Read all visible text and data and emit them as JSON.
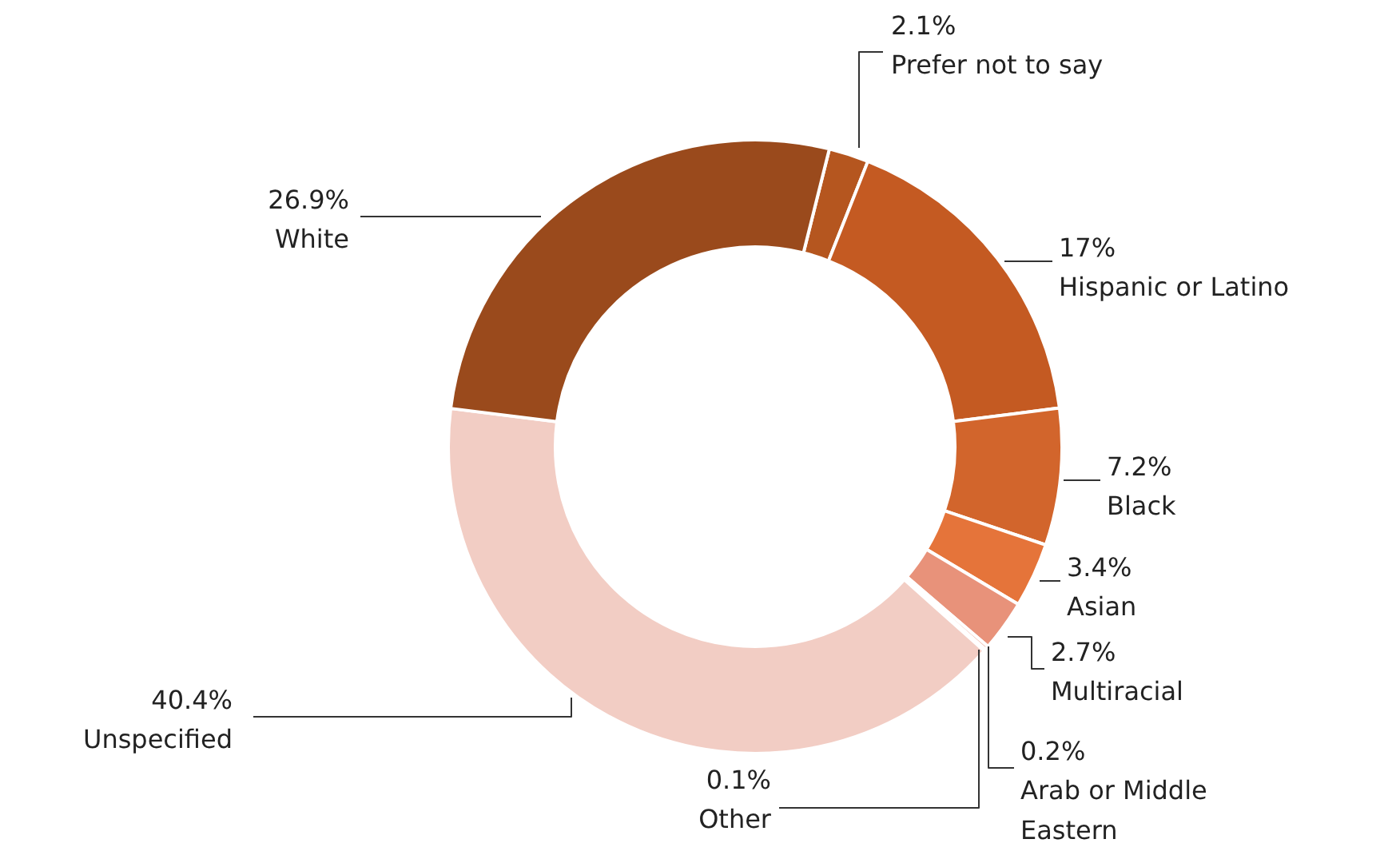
{
  "chart_data": {
    "type": "donut",
    "categories": [
      "Prefer not to say",
      "Hispanic or Latino",
      "Black",
      "Asian",
      "Multiracial",
      "Arab or Middle Eastern",
      "Other",
      "Unspecified",
      "White"
    ],
    "values": [
      2.1,
      17,
      7.2,
      3.4,
      2.7,
      0.2,
      0.1,
      40.4,
      26.9
    ],
    "value_labels": [
      "2.1%",
      "17%",
      "7.2%",
      "3.4%",
      "2.7%",
      "0.2%",
      "0.1%",
      "40.4%",
      "26.9%"
    ],
    "colors": [
      "#b5561f",
      "#c45a22",
      "#d2652c",
      "#e5743a",
      "#e8927a",
      "#eeb4a4",
      "#f2ccc3",
      "#f2cdc4",
      "#9a4a1c"
    ]
  }
}
